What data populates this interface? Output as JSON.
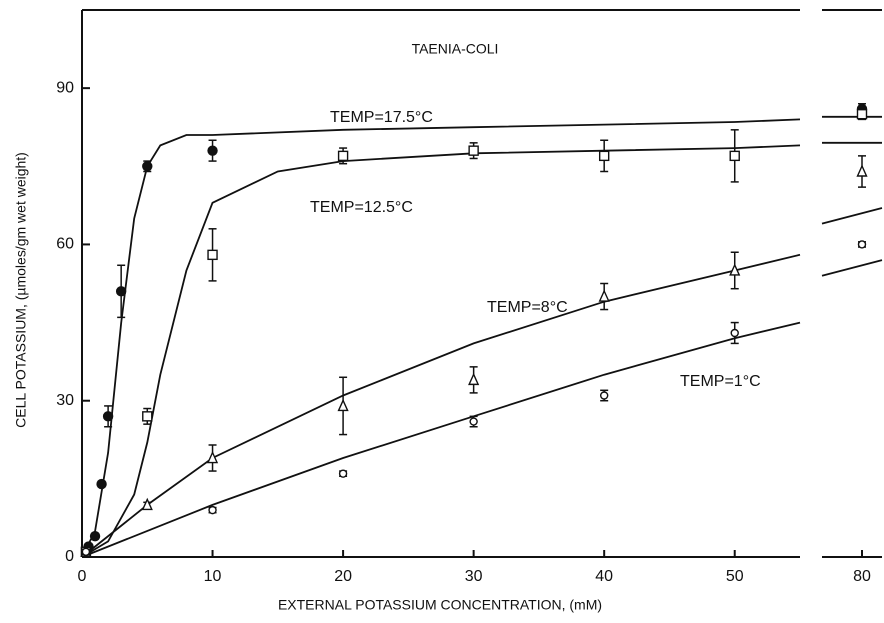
{
  "chart_data": {
    "type": "scatter",
    "title": "TAENIA-COLI",
    "x_label": "EXTERNAL POTASSIUM CONCENTRATION, (mM)",
    "y_label": "CELL POTASSIUM, (µmoles/gm wet weight)",
    "panels": [
      {
        "xlim": [
          0,
          55
        ],
        "xticks": [
          0,
          10,
          20,
          30,
          40,
          50
        ]
      },
      {
        "xlim": [
          77,
          81.5
        ],
        "xticks": [
          80
        ]
      }
    ],
    "ylim": [
      0,
      105
    ],
    "yticks": [
      0,
      30,
      60,
      90
    ],
    "series": [
      {
        "name": "TEMP=17.5°C",
        "color": "#111111",
        "marker": "filled-circle",
        "x": [
          0.5,
          1,
          1.5,
          2,
          3,
          5,
          10,
          80
        ],
        "values": [
          2,
          4,
          14,
          27,
          51,
          75,
          78,
          86
        ],
        "errors": [
          0.5,
          0.5,
          0.5,
          2,
          5,
          1,
          2,
          1
        ],
        "curve": {
          "x": [
            0,
            1,
            2,
            3,
            4,
            5,
            6,
            8,
            10,
            20,
            30,
            40,
            50,
            55,
            66,
            77,
            81.5
          ],
          "values": [
            0,
            5,
            20,
            45,
            65,
            75,
            79,
            81,
            81,
            82,
            82.5,
            83,
            83.5,
            84,
            null,
            84.5,
            84.5
          ]
        }
      },
      {
        "name": "TEMP=12.5°C",
        "color": "#111111",
        "marker": "square",
        "x": [
          0.3,
          5,
          10,
          20,
          30,
          40,
          50,
          80
        ],
        "values": [
          1,
          27,
          58,
          77,
          78,
          77,
          77,
          85
        ],
        "errors": [
          0.5,
          1.5,
          5,
          1.5,
          1.5,
          3,
          5,
          1
        ],
        "curve": {
          "x": [
            0,
            2,
            4,
            5,
            6,
            8,
            10,
            15,
            20,
            30,
            40,
            50,
            55,
            66,
            77,
            81.5
          ],
          "values": [
            0,
            3,
            12,
            22,
            35,
            55,
            68,
            74,
            76,
            77.5,
            78,
            78.5,
            79,
            null,
            79.5,
            79.5
          ]
        }
      },
      {
        "name": "TEMP=8°C",
        "color": "#111111",
        "marker": "triangle",
        "x": [
          0.3,
          5,
          10,
          20,
          30,
          40,
          50,
          80
        ],
        "values": [
          1,
          10,
          19,
          29,
          34,
          50,
          55,
          74
        ],
        "errors": [
          0.5,
          0.5,
          2.5,
          5.5,
          2.5,
          2.5,
          3.5,
          3
        ],
        "curve": {
          "x": [
            0,
            5,
            10,
            20,
            30,
            40,
            50,
            55,
            66,
            77,
            81.5
          ],
          "values": [
            0,
            10,
            19,
            31,
            41,
            49,
            55,
            58,
            null,
            64,
            67
          ]
        }
      },
      {
        "name": "TEMP=1°C",
        "color": "#111111",
        "marker": "circle",
        "x": [
          0.3,
          10,
          20,
          30,
          40,
          50,
          80
        ],
        "values": [
          1,
          9,
          16,
          26,
          31,
          43,
          60
        ],
        "errors": [
          0.5,
          0.5,
          0.5,
          1,
          1,
          2,
          0.5
        ],
        "curve": {
          "x": [
            0,
            10,
            20,
            30,
            40,
            50,
            55,
            66,
            77,
            81.5
          ],
          "values": [
            0,
            10,
            19,
            27,
            35,
            42,
            45,
            null,
            54,
            57
          ]
        }
      }
    ]
  }
}
